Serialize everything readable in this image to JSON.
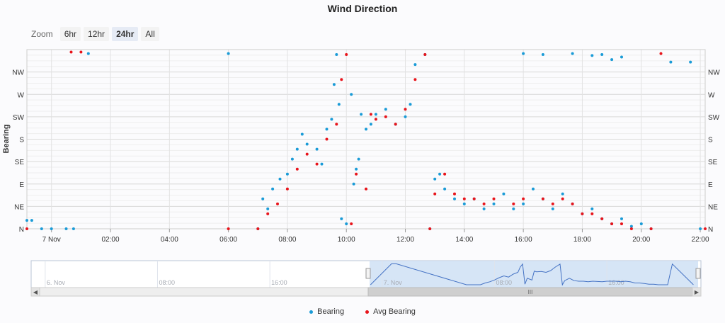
{
  "chart_data": {
    "type": "scatter",
    "title": "Wind Direction",
    "ylabel": "Bearing",
    "ylim": [
      0,
      360
    ],
    "xlim": [
      "-0:50",
      "22:10"
    ],
    "y_tick_labels": [
      {
        "v": 0,
        "label": "N"
      },
      {
        "v": 45,
        "label": "NE"
      },
      {
        "v": 90,
        "label": "E"
      },
      {
        "v": 135,
        "label": "SE"
      },
      {
        "v": 180,
        "label": "S"
      },
      {
        "v": 225,
        "label": "SW"
      },
      {
        "v": 270,
        "label": "W"
      },
      {
        "v": 315,
        "label": "NW"
      }
    ],
    "x_tick_labels": [
      {
        "t": "0:00",
        "label": "7 Nov"
      },
      {
        "t": "2:00",
        "label": "02:00"
      },
      {
        "t": "4:00",
        "label": "04:00"
      },
      {
        "t": "6:00",
        "label": "06:00"
      },
      {
        "t": "8:00",
        "label": "08:00"
      },
      {
        "t": "10:00",
        "label": "10:00"
      },
      {
        "t": "12:00",
        "label": "12:00"
      },
      {
        "t": "14:00",
        "label": "14:00"
      },
      {
        "t": "16:00",
        "label": "16:00"
      },
      {
        "t": "18:00",
        "label": "18:00"
      },
      {
        "t": "20:00",
        "label": "20:00"
      },
      {
        "t": "22:00",
        "label": "22:00"
      }
    ],
    "grid": true,
    "legend_position": "bottom",
    "series": [
      {
        "name": "Bearing",
        "color": "#1a9bd7",
        "points": [
          [
            "-0:50",
            17
          ],
          [
            "-0:40",
            17
          ],
          [
            "-0:20",
            0
          ],
          [
            "0:00",
            0
          ],
          [
            "0:30",
            0
          ],
          [
            "0:45",
            0
          ],
          [
            "1:15",
            352
          ],
          [
            "6:00",
            352
          ],
          [
            "7:00",
            0
          ],
          [
            "7:10",
            60
          ],
          [
            "7:20",
            40
          ],
          [
            "7:30",
            80
          ],
          [
            "7:45",
            100
          ],
          [
            "8:00",
            110
          ],
          [
            "8:10",
            140
          ],
          [
            "8:20",
            160
          ],
          [
            "8:30",
            190
          ],
          [
            "8:40",
            170
          ],
          [
            "9:00",
            160
          ],
          [
            "9:10",
            130
          ],
          [
            "9:20",
            200
          ],
          [
            "9:30",
            220
          ],
          [
            "9:35",
            290
          ],
          [
            "9:40",
            350
          ],
          [
            "9:45",
            250
          ],
          [
            "9:50",
            20
          ],
          [
            "10:00",
            10
          ],
          [
            "10:10",
            270
          ],
          [
            "10:15",
            90
          ],
          [
            "10:20",
            120
          ],
          [
            "10:25",
            140
          ],
          [
            "10:30",
            230
          ],
          [
            "10:40",
            200
          ],
          [
            "10:50",
            210
          ],
          [
            "11:00",
            230
          ],
          [
            "11:20",
            240
          ],
          [
            "11:40",
            210
          ],
          [
            "12:00",
            225
          ],
          [
            "12:10",
            250
          ],
          [
            "12:20",
            330
          ],
          [
            "12:40",
            350
          ],
          [
            "12:50",
            0
          ],
          [
            "13:00",
            100
          ],
          [
            "13:10",
            110
          ],
          [
            "13:20",
            80
          ],
          [
            "13:40",
            60
          ],
          [
            "14:00",
            50
          ],
          [
            "14:20",
            60
          ],
          [
            "14:40",
            40
          ],
          [
            "15:00",
            50
          ],
          [
            "15:20",
            70
          ],
          [
            "15:40",
            40
          ],
          [
            "16:00",
            50
          ],
          [
            "16:20",
            80
          ],
          [
            "16:40",
            60
          ],
          [
            "17:00",
            40
          ],
          [
            "17:20",
            70
          ],
          [
            "17:40",
            50
          ],
          [
            "18:00",
            30
          ],
          [
            "18:20",
            40
          ],
          [
            "18:40",
            20
          ],
          [
            "19:00",
            10
          ],
          [
            "19:20",
            20
          ],
          [
            "19:40",
            5
          ],
          [
            "20:00",
            10
          ],
          [
            "20:20",
            0
          ],
          [
            "16:00",
            352
          ],
          [
            "16:40",
            350
          ],
          [
            "17:40",
            352
          ],
          [
            "18:20",
            348
          ],
          [
            "18:40",
            350
          ],
          [
            "19:00",
            340
          ],
          [
            "19:20",
            345
          ],
          [
            "21:00",
            335
          ],
          [
            "21:40",
            335
          ],
          [
            "22:00",
            0
          ]
        ]
      },
      {
        "name": "Avg Bearing",
        "color": "#e8141b",
        "points": [
          [
            "-0:50",
            0
          ],
          [
            "6:00",
            0
          ],
          [
            "7:00",
            0
          ],
          [
            "7:20",
            30
          ],
          [
            "7:40",
            50
          ],
          [
            "8:00",
            80
          ],
          [
            "8:20",
            120
          ],
          [
            "8:40",
            150
          ],
          [
            "9:00",
            130
          ],
          [
            "9:20",
            180
          ],
          [
            "9:40",
            210
          ],
          [
            "9:50",
            300
          ],
          [
            "10:00",
            350
          ],
          [
            "10:10",
            10
          ],
          [
            "10:20",
            110
          ],
          [
            "10:40",
            80
          ],
          [
            "10:50",
            230
          ],
          [
            "11:00",
            220
          ],
          [
            "11:20",
            225
          ],
          [
            "11:40",
            210
          ],
          [
            "12:00",
            240
          ],
          [
            "12:20",
            300
          ],
          [
            "12:40",
            350
          ],
          [
            "12:50",
            0
          ],
          [
            "13:00",
            70
          ],
          [
            "13:20",
            110
          ],
          [
            "13:40",
            70
          ],
          [
            "14:00",
            60
          ],
          [
            "14:20",
            60
          ],
          [
            "14:40",
            50
          ],
          [
            "15:00",
            60
          ],
          [
            "15:40",
            50
          ],
          [
            "16:00",
            60
          ],
          [
            "16:40",
            60
          ],
          [
            "17:00",
            50
          ],
          [
            "17:20",
            60
          ],
          [
            "17:40",
            50
          ],
          [
            "18:00",
            30
          ],
          [
            "18:20",
            30
          ],
          [
            "18:40",
            20
          ],
          [
            "19:00",
            10
          ],
          [
            "19:20",
            10
          ],
          [
            "19:40",
            0
          ],
          [
            "20:20",
            0
          ],
          [
            "22:10",
            0
          ],
          [
            "0:40",
            355
          ],
          [
            "1:00",
            355
          ],
          [
            "20:40",
            352
          ]
        ]
      }
    ],
    "navigator": {
      "tick_labels": [
        {
          "t": "-24:00",
          "label": "6. Nov"
        },
        {
          "t": "-16:00",
          "label": "08:00"
        },
        {
          "t": "-8:00",
          "label": "16:00"
        },
        {
          "t": "0:00",
          "label": "7. Nov"
        },
        {
          "t": "8:00",
          "label": "08:00"
        },
        {
          "t": "16:00",
          "label": "16:00"
        }
      ],
      "selected_range": [
        "-0:50",
        "22:10"
      ],
      "scroll_grip": "III"
    }
  },
  "zoom": {
    "label": "Zoom",
    "buttons": [
      {
        "label": "6hr",
        "active": false
      },
      {
        "label": "12hr",
        "active": false
      },
      {
        "label": "24hr",
        "active": true
      },
      {
        "label": "All",
        "active": false
      }
    ]
  },
  "legend": {
    "items": [
      {
        "label": "Bearing",
        "color": "#1a9bd7"
      },
      {
        "label": "Avg Bearing",
        "color": "#e8141b"
      }
    ]
  }
}
